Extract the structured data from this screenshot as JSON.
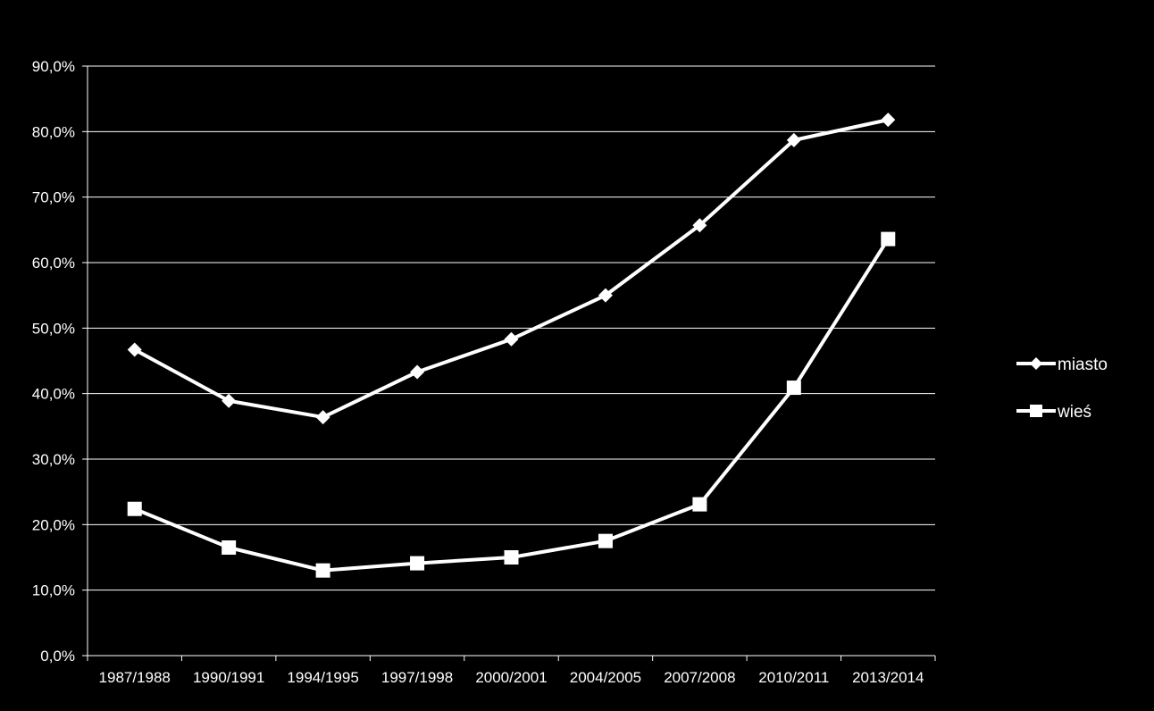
{
  "chart_data": {
    "type": "line",
    "title": "",
    "xlabel": "",
    "ylabel": "",
    "categories": [
      "1987/1988",
      "1990/1991",
      "1994/1995",
      "1997/1998",
      "2000/2001",
      "2004/2005",
      "2007/2008",
      "2010/2011",
      "2013/2014"
    ],
    "y_ticks": [
      "0,0%",
      "10,0%",
      "20,0%",
      "30,0%",
      "40,0%",
      "50,0%",
      "60,0%",
      "70,0%",
      "80,0%",
      "90,0%"
    ],
    "ylim": [
      0,
      90
    ],
    "grid": true,
    "legend_position": "right",
    "series": [
      {
        "name": "miasto",
        "marker": "diamond",
        "values": [
          46.7,
          38.9,
          36.4,
          43.3,
          48.3,
          55.0,
          65.7,
          78.7,
          81.8
        ]
      },
      {
        "name": "wieś",
        "marker": "square",
        "values": [
          22.4,
          16.5,
          13.0,
          14.1,
          15.0,
          17.5,
          23.1,
          40.9,
          63.6
        ]
      }
    ],
    "colors": {
      "background": "#000000",
      "line": "#ffffff",
      "grid": "#ffffff",
      "text": "#ffffff"
    }
  }
}
